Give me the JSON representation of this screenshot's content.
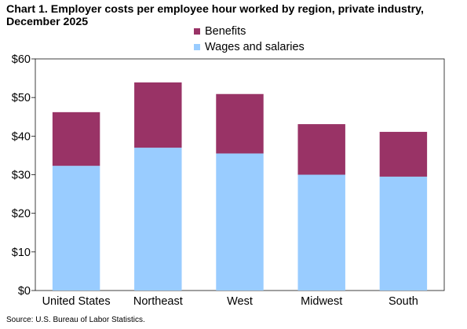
{
  "title": "Chart 1. Employer costs per employee hour worked by region, private industry, December 2025",
  "source": "Source: U.S. Bureau of Labor Statistics.",
  "chart_data": {
    "type": "bar",
    "stacked": true,
    "title": "Chart 1. Employer costs per employee hour worked by region, private industry, December 2025",
    "categories": [
      "United States",
      "Northeast",
      "West",
      "Midwest",
      "South"
    ],
    "series": [
      {
        "name": "Wages and salaries",
        "values": [
          32.3,
          37.0,
          35.5,
          30.0,
          29.5
        ],
        "color": "#99ccff"
      },
      {
        "name": "Benefits",
        "values": [
          13.9,
          16.9,
          15.4,
          13.1,
          11.6
        ],
        "color": "#993366"
      }
    ],
    "legend_order": [
      "Benefits",
      "Wages and salaries"
    ],
    "ylim": [
      0,
      60
    ],
    "yticks": [
      0,
      10,
      20,
      30,
      40,
      50,
      60
    ],
    "ytick_labels": [
      "$0",
      "$10",
      "$20",
      "$30",
      "$40",
      "$50",
      "$60"
    ],
    "xlabel": "",
    "ylabel": "",
    "grid": false,
    "legend_position": "top-center"
  }
}
